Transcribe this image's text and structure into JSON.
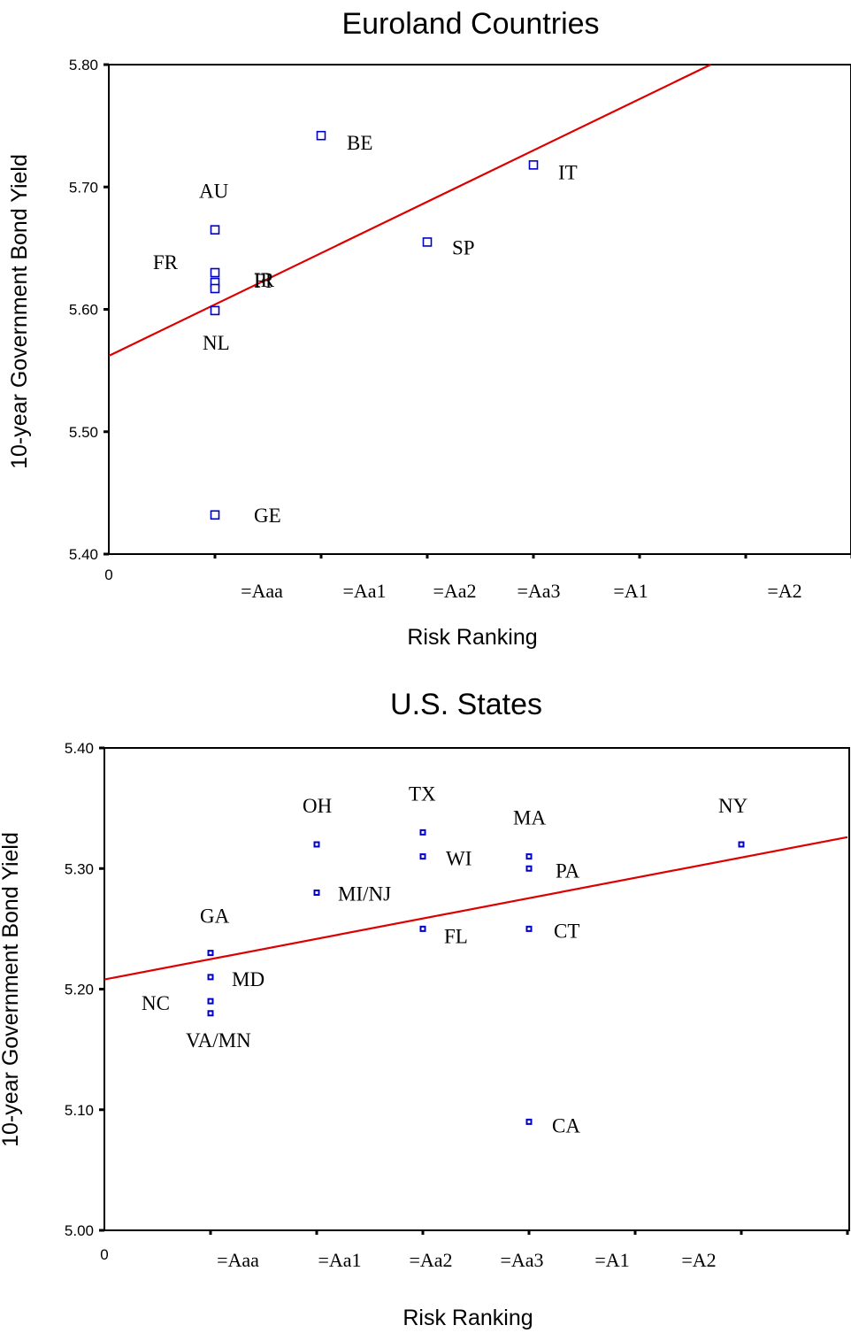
{
  "chart_data": [
    {
      "type": "scatter",
      "title": "Euroland Countries",
      "xlabel": "Risk Ranking",
      "ylabel": "10-year Government Bond Yield",
      "x_origin_label": "0",
      "categories": [
        "=Aaa",
        "=Aa1",
        "=Aa2",
        "=Aa3",
        "=A1",
        "=A2"
      ],
      "ylim": [
        5.4,
        5.8
      ],
      "yticks": [
        "5.40",
        "5.50",
        "5.60",
        "5.70",
        "5.80"
      ],
      "xlim": [
        0,
        7
      ],
      "marker_color": "#0000cc",
      "line_color": "#dd0000",
      "points": [
        {
          "label": "AU",
          "x": 1,
          "y": 5.665
        },
        {
          "label": "FR",
          "x": 1,
          "y": 5.63
        },
        {
          "label": "FI",
          "x": 1,
          "y": 5.622
        },
        {
          "label": "IR",
          "x": 1,
          "y": 5.617
        },
        {
          "label": "NL",
          "x": 1,
          "y": 5.599
        },
        {
          "label": "GE",
          "x": 1,
          "y": 5.432
        },
        {
          "label": "BE",
          "x": 2,
          "y": 5.742
        },
        {
          "label": "SP",
          "x": 3,
          "y": 5.655
        },
        {
          "label": "IT",
          "x": 4,
          "y": 5.718
        }
      ],
      "fit_line": {
        "x": [
          0,
          5.67
        ],
        "y": [
          5.562,
          5.8
        ]
      }
    },
    {
      "type": "scatter",
      "title": "U.S. States",
      "xlabel": "Risk Ranking",
      "ylabel": "10-year Government Bond Yield",
      "x_origin_label": "0",
      "categories": [
        "=Aaa",
        "=Aa1",
        "=Aa2",
        "=Aa3",
        "=A1",
        "=A2"
      ],
      "ylim": [
        5.0,
        5.4
      ],
      "yticks": [
        "5.00",
        "5.10",
        "5.20",
        "5.30",
        "5.40"
      ],
      "xlim": [
        0,
        7
      ],
      "marker_color": "#0000cc",
      "line_color": "#dd0000",
      "points": [
        {
          "label": "GA",
          "x": 1,
          "y": 5.23
        },
        {
          "label": "MD",
          "x": 1,
          "y": 5.21
        },
        {
          "label": "NC",
          "x": 1,
          "y": 5.19
        },
        {
          "label": "VA/MN",
          "x": 1,
          "y": 5.18
        },
        {
          "label": "OH",
          "x": 2,
          "y": 5.32
        },
        {
          "label": "MI/NJ",
          "x": 2,
          "y": 5.28
        },
        {
          "label": "TX",
          "x": 3,
          "y": 5.33
        },
        {
          "label": "WI",
          "x": 3,
          "y": 5.31
        },
        {
          "label": "FL",
          "x": 3,
          "y": 5.25
        },
        {
          "label": "MA",
          "x": 4,
          "y": 5.31
        },
        {
          "label": "PA",
          "x": 4,
          "y": 5.3
        },
        {
          "label": "CT",
          "x": 4,
          "y": 5.25
        },
        {
          "label": "CA",
          "x": 4,
          "y": 5.09
        },
        {
          "label": "NY",
          "x": 6,
          "y": 5.32
        }
      ],
      "fit_line": {
        "x": [
          0,
          7
        ],
        "y": [
          5.208,
          5.326
        ]
      }
    }
  ]
}
